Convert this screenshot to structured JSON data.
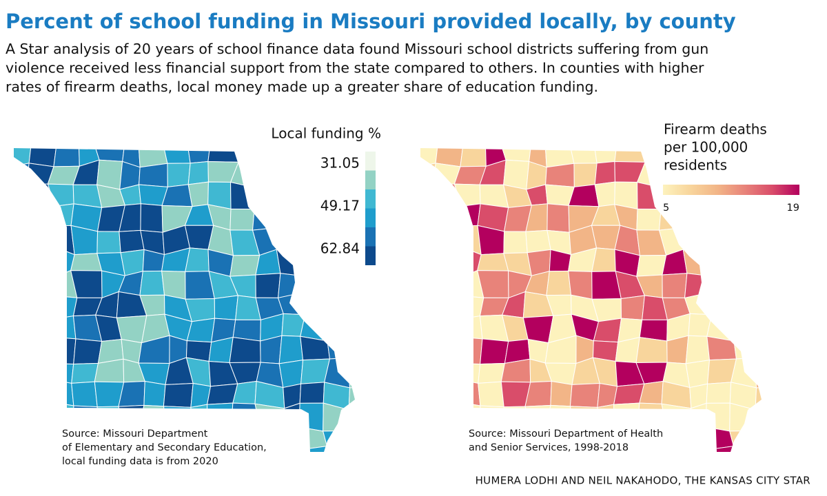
{
  "title": "Percent of school funding in Missouri provided locally, by county",
  "description": [
    "A Star analysis of 20 years of school finance data found Missouri school districts suffering from gun",
    "violence received less financial support from the state compared to others. In counties with higher",
    "rates of firearm deaths, local money made up a greater share of education funding."
  ],
  "maps": [
    {
      "legend_title": [
        "Local funding %"
      ],
      "legend_labels": [
        31.05,
        49.17,
        62.84
      ],
      "colors": [
        "#eef6ea",
        "#93d2c4",
        "#40b8d2",
        "#1f9dcc",
        "#1a72b4",
        "#0d4a8c"
      ],
      "source": [
        "Source: Missouri Department",
        "of Elementary and Secondary Education,",
        "local funding data is from 2020"
      ]
    },
    {
      "legend_title": [
        "Firearm deaths",
        "per 100,000",
        "residents"
      ],
      "legend_labels": [
        5,
        19
      ],
      "colors": [
        "#fdf2bd",
        "#f8d59c",
        "#f2b587",
        "#e8837a",
        "#d94d6a",
        "#b3005e"
      ],
      "source": [
        "Source: Missouri Department of Health",
        "and Senior Services, 1998-2018"
      ]
    }
  ],
  "credit": "HUMERA LODHI AND NEIL NAKAHODO, THE KANSAS CITY STAR"
}
